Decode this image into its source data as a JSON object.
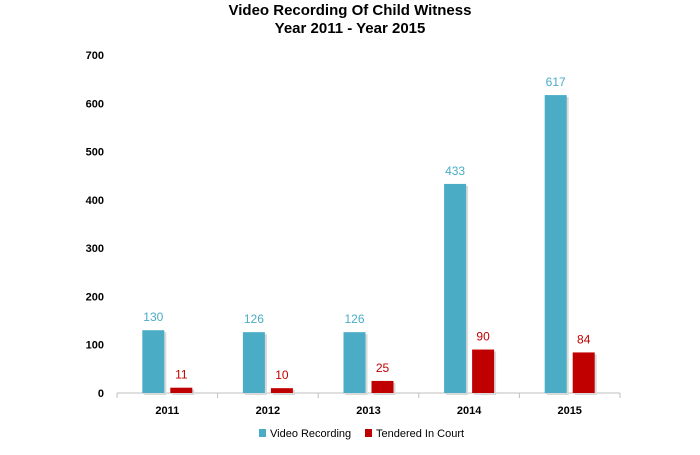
{
  "chart_data": {
    "type": "bar",
    "title": "Video Recording Of Child Witness",
    "subtitle": "Year 2011 - Year 2015",
    "categories": [
      "2011",
      "2012",
      "2013",
      "2014",
      "2015"
    ],
    "series": [
      {
        "name": "Video Recording",
        "values": [
          130,
          126,
          126,
          433,
          617
        ],
        "color": "#4bacc6"
      },
      {
        "name": "Tendered In Court",
        "values": [
          11,
          10,
          25,
          90,
          84
        ],
        "color": "#c00000"
      }
    ],
    "y_ticks": [
      "0",
      "100",
      "200",
      "300",
      "400",
      "500",
      "600",
      "700"
    ],
    "ylim": [
      0,
      700
    ],
    "grid": false,
    "legend_position": "bottom"
  }
}
